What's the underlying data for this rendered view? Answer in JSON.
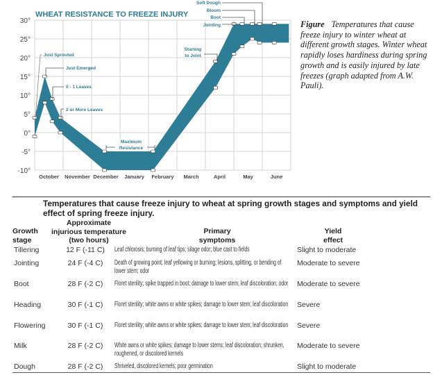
{
  "chart_data": {
    "type": "area",
    "title": "WHEAT RESISTANCE TO FREEZE INJURY",
    "xlabel": "",
    "ylabel": "",
    "x_tick_labels": [
      "October",
      "November",
      "December",
      "January",
      "February",
      "March",
      "April",
      "May",
      "June"
    ],
    "y_tick_labels": [
      "30°",
      "25°",
      "20°",
      "15°",
      "10°",
      "5°",
      "0°",
      "-5°",
      "-10°"
    ],
    "ylim": [
      -10,
      30
    ],
    "grid": true,
    "band_color": "#2e7d96",
    "accent_color": "#2e7d96",
    "series": [
      {
        "points": [
          [
            "Oct 1",
            4
          ],
          [
            "Oct 12",
            15
          ],
          [
            "Oct 20",
            9
          ],
          [
            "Oct 29",
            4
          ],
          [
            "Dec 15",
            -5
          ],
          [
            "Feb 6",
            -5
          ],
          [
            "Apr 12",
            19
          ],
          [
            "May 1",
            29
          ],
          [
            "May 10",
            29
          ],
          [
            "May 21",
            29
          ],
          [
            "May 29",
            29
          ],
          [
            "Jun 14",
            29
          ],
          [
            "Jun 30",
            29
          ]
        ]
      },
      {
        "points": [
          [
            "Oct 1",
            -1
          ],
          [
            "Oct 12",
            8
          ],
          [
            "Oct 20",
            3
          ],
          [
            "Oct 29",
            0
          ],
          [
            "Dec 15",
            -10
          ],
          [
            "Feb 6",
            -10
          ],
          [
            "Apr 12",
            12
          ],
          [
            "May 1",
            21
          ],
          [
            "May 10",
            23
          ],
          [
            "May 21",
            25
          ],
          [
            "May 29",
            24
          ],
          [
            "Jun 14",
            24
          ],
          [
            "Jun 30",
            24
          ]
        ]
      }
    ],
    "annotations": {
      "just_sprouted": "Just Sprouted",
      "just_emerged": "Just Emerged",
      "leaves01": "0 - 1 Leaves",
      "leaves2": "2 or More Leaves",
      "max_res_1": "Maximum",
      "max_res_2": "Resistance",
      "start_joint_1": "Starting",
      "start_joint_2": "to Joint",
      "jointing": "Jointing",
      "boot": "Boot",
      "bloom": "Bloom",
      "soft_dough": "Soft Dough"
    }
  },
  "caption": {
    "label": "Figure",
    "text": "Temperatures that cause freeze injury to winter wheat at different growth stages. Winter wheat rapidly loses hardiness during spring growth and is easily injured by late freezes (graph adapted from A.W. Pauli)."
  },
  "table": {
    "title": "Temperatures that cause freeze injury to wheat at spring growth stages and symptoms and yield effect of spring freeze injury.",
    "headers": {
      "stage_1": "Growth",
      "stage_2": "stage",
      "temp_1": "Approximate",
      "temp_2": "injurious temperature",
      "temp_3": "(two hours)",
      "sym_1": "Primary",
      "sym_2": "symptoms",
      "yield_1": "Yield",
      "yield_2": "effect"
    },
    "rows": [
      {
        "stage": "Tillering",
        "temp": "12 F (-11 C)",
        "symptoms": "Leaf chlorosis; burning of leaf tips; silage odor; blue cast to fields",
        "yield": "Slight to moderate"
      },
      {
        "stage": "Jointing",
        "temp": "24 F (-4 C)",
        "symptoms": "Death of growing point; leaf yellowing or burning; lesions, splitting, or bending of lower stem; odor",
        "yield": "Moderate to severe"
      },
      {
        "stage": "Boot",
        "temp": "28 F (-2 C)",
        "symptoms": "Floret sterility; spike trapped in boot; damage to lower stem; leaf discoloration; odor",
        "yield": "Moderate to severe"
      },
      {
        "stage": "Heading",
        "temp": "30 F (-1 C)",
        "symptoms": "Floret sterility; white awns or white spikes; damage to lower stem; leaf discoloration",
        "yield": "Severe"
      },
      {
        "stage": "Flowering",
        "temp": "30 F (-1 C)",
        "symptoms": "Floret sterility; white awns or white spikes; damage to lower stem; leaf discoloration",
        "yield": "Severe"
      },
      {
        "stage": "Milk",
        "temp": "28 F (-2 C)",
        "symptoms": "White awns or white spikes; damage to lower stems; leaf discoloration; shrunken, roughened, or discolored kernels",
        "yield": "Moderate to severe"
      },
      {
        "stage": "Dough",
        "temp": "28 F (-2 C)",
        "symptoms": "Shriveled, discolored kernels; poor germination",
        "yield": "Slight to moderate"
      }
    ]
  }
}
